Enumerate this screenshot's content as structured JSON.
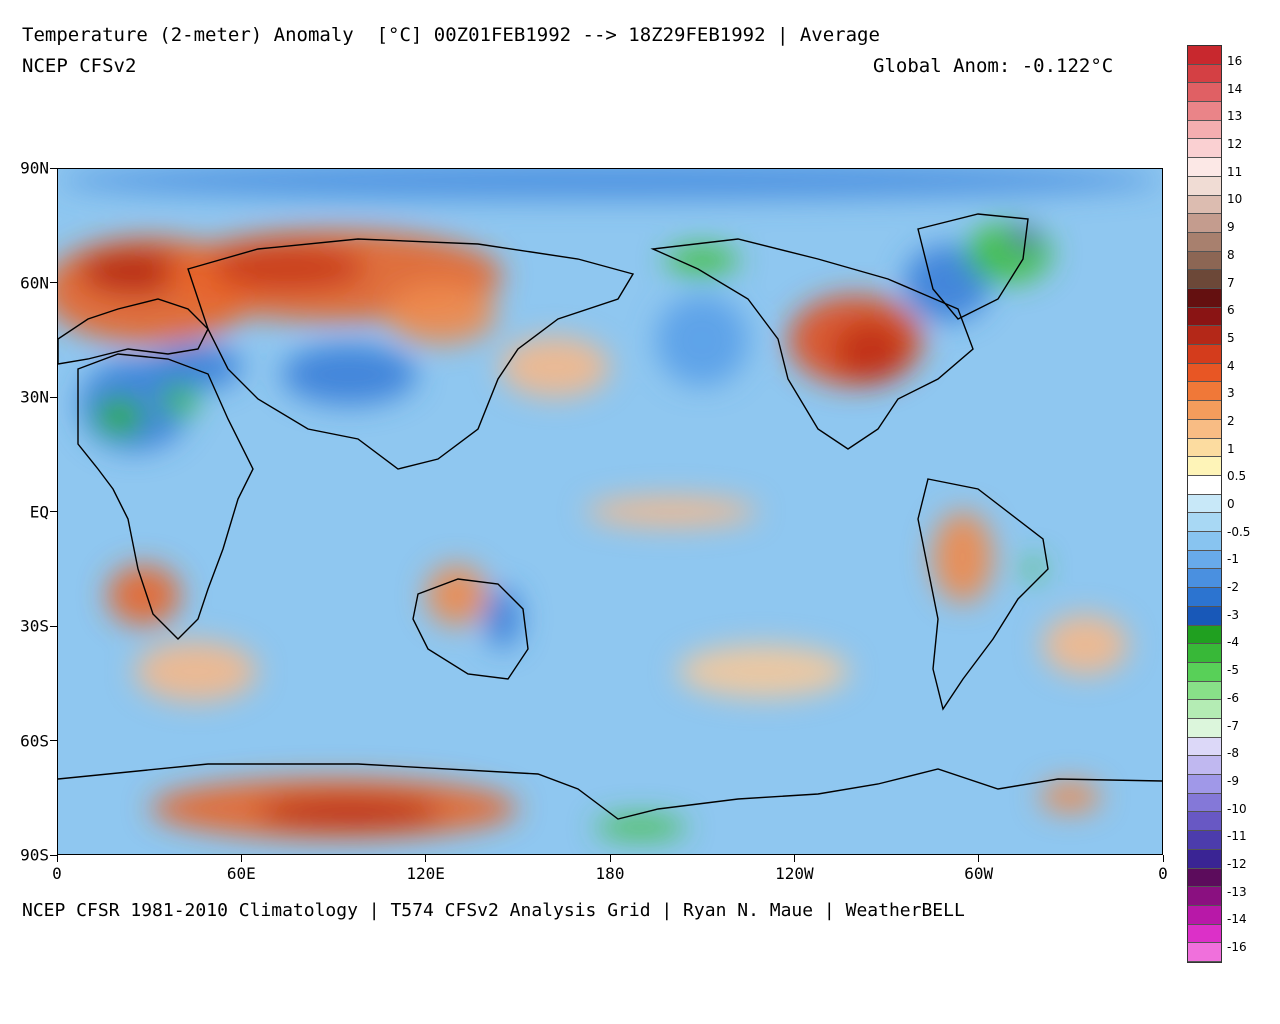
{
  "header": {
    "title_line1": "Temperature (2-meter) Anomaly  [°C] 00Z01FEB1992 --> 18Z29FEB1992 | Average",
    "title_line2": "NCEP CFSv2",
    "global_anom": "Global Anom: -0.122°C"
  },
  "footer": "NCEP CFSR 1981-2010 Climatology | T574 CFSv2 Analysis Grid | Ryan N. Maue | WeatherBELL",
  "map": {
    "projection": "equirectangular",
    "lat_labels": [
      {
        "text": "90N",
        "lat": 90
      },
      {
        "text": "60N",
        "lat": 60
      },
      {
        "text": "30N",
        "lat": 30
      },
      {
        "text": "EQ",
        "lat": 0
      },
      {
        "text": "30S",
        "lat": -30
      },
      {
        "text": "60S",
        "lat": -60
      },
      {
        "text": "90S",
        "lat": -90
      }
    ],
    "lon_labels": [
      {
        "text": "0",
        "lon": 0
      },
      {
        "text": "60E",
        "lon": 60
      },
      {
        "text": "120E",
        "lon": 120
      },
      {
        "text": "180",
        "lon": 180
      },
      {
        "text": "120W",
        "lon": 240
      },
      {
        "text": "60W",
        "lon": 300
      },
      {
        "text": "0",
        "lon": 360
      }
    ],
    "background_color": "#8fc7f0",
    "anomaly_regions": [
      {
        "name": "arctic-cold-band",
        "lon": 180,
        "lat": 87,
        "rx": 180,
        "ry": 5,
        "color": "#4a90e0"
      },
      {
        "name": "europe-warm",
        "lon": 30,
        "lat": 58,
        "rx": 35,
        "ry": 14,
        "color": "#e8652a"
      },
      {
        "name": "scandinavia-hot",
        "lon": 25,
        "lat": 63,
        "rx": 18,
        "ry": 6,
        "color": "#b62818"
      },
      {
        "name": "siberia-warm",
        "lon": 90,
        "lat": 62,
        "rx": 55,
        "ry": 12,
        "color": "#e8652a"
      },
      {
        "name": "siberia-hot",
        "lon": 75,
        "lat": 64,
        "rx": 25,
        "ry": 6,
        "color": "#c8381c"
      },
      {
        "name": "east-asia-warm",
        "lon": 125,
        "lat": 52,
        "rx": 18,
        "ry": 8,
        "color": "#f08a4a"
      },
      {
        "name": "north-pacific-warm",
        "lon": 162,
        "lat": 38,
        "rx": 18,
        "ry": 8,
        "color": "#f5b88a"
      },
      {
        "name": "north-africa-cold",
        "lon": 25,
        "lat": 28,
        "rx": 18,
        "ry": 12,
        "color": "#3a7fd8"
      },
      {
        "name": "sahara-green",
        "lon": 20,
        "lat": 25,
        "rx": 8,
        "ry": 5,
        "color": "#30b030"
      },
      {
        "name": "arabia-green",
        "lon": 40,
        "lat": 30,
        "rx": 6,
        "ry": 5,
        "color": "#40c040"
      },
      {
        "name": "middle-east-cold",
        "lon": 45,
        "lat": 38,
        "rx": 15,
        "ry": 6,
        "color": "#3a7fd8"
      },
      {
        "name": "tibet-cold",
        "lon": 95,
        "lat": 36,
        "rx": 22,
        "ry": 8,
        "color": "#3a7fd8"
      },
      {
        "name": "southern-africa-warm",
        "lon": 28,
        "lat": -22,
        "rx": 12,
        "ry": 8,
        "color": "#e8652a"
      },
      {
        "name": "south-indian-warm",
        "lon": 45,
        "lat": -42,
        "rx": 20,
        "ry": 8,
        "color": "#f5b88a"
      },
      {
        "name": "australia-warm",
        "lon": 130,
        "lat": -22,
        "rx": 10,
        "ry": 8,
        "color": "#f08a4a"
      },
      {
        "name": "australia-cold",
        "lon": 145,
        "lat": -28,
        "rx": 6,
        "ry": 8,
        "color": "#3a7fd8"
      },
      {
        "name": "nino-warm",
        "lon": 200,
        "lat": 0,
        "rx": 28,
        "ry": 4,
        "color": "#f5b88a"
      },
      {
        "name": "south-pacific-warm",
        "lon": 230,
        "lat": -42,
        "rx": 28,
        "ry": 7,
        "color": "#f5c89a"
      },
      {
        "name": "gulf-alaska-cold",
        "lon": 210,
        "lat": 45,
        "rx": 15,
        "ry": 12,
        "color": "#5aa0e8"
      },
      {
        "name": "north-america-warm",
        "lon": 260,
        "lat": 45,
        "rx": 22,
        "ry": 12,
        "color": "#e05020"
      },
      {
        "name": "north-america-hot",
        "lon": 265,
        "lat": 42,
        "rx": 12,
        "ry": 8,
        "color": "#c03018"
      },
      {
        "name": "alaska-green",
        "lon": 210,
        "lat": 66,
        "rx": 12,
        "ry": 4,
        "color": "#40c040"
      },
      {
        "name": "canada-cold",
        "lon": 290,
        "lat": 60,
        "rx": 14,
        "ry": 10,
        "color": "#3a7fd8"
      },
      {
        "name": "greenland-green",
        "lon": 310,
        "lat": 68,
        "rx": 14,
        "ry": 8,
        "color": "#40c040"
      },
      {
        "name": "greenland-purple",
        "lon": 315,
        "lat": 72,
        "rx": 4,
        "ry": 3,
        "color": "#6040c0"
      },
      {
        "name": "south-america-warm",
        "lon": 295,
        "lat": -12,
        "rx": 10,
        "ry": 12,
        "color": "#f08a4a"
      },
      {
        "name": "brazil-green",
        "lon": 318,
        "lat": -15,
        "rx": 3,
        "ry": 3,
        "color": "#40c040"
      },
      {
        "name": "south-atlantic-warm",
        "lon": 335,
        "lat": -35,
        "rx": 14,
        "ry": 8,
        "color": "#f5b88a"
      },
      {
        "name": "east-antarctica-warm",
        "lon": 90,
        "lat": -78,
        "rx": 60,
        "ry": 8,
        "color": "#e8652a"
      },
      {
        "name": "east-antarctica-hot",
        "lon": 95,
        "lat": -79,
        "rx": 30,
        "ry": 4,
        "color": "#b62818"
      },
      {
        "name": "ross-green",
        "lon": 190,
        "lat": -83,
        "rx": 15,
        "ry": 3,
        "color": "#40c040"
      },
      {
        "name": "weddell-warm",
        "lon": 330,
        "lat": -75,
        "rx": 10,
        "ry": 4,
        "color": "#f08a4a"
      }
    ]
  },
  "colorbar": {
    "labels": [
      "16",
      "14",
      "13",
      "12",
      "11",
      "10",
      "9",
      "8",
      "7",
      "6",
      "5",
      "4",
      "3",
      "2",
      "1",
      "0.5",
      "0",
      "-0.5",
      "-1",
      "-2",
      "-3",
      "-4",
      "-5",
      "-6",
      "-7",
      "-8",
      "-9",
      "-10",
      "-11",
      "-12",
      "-13",
      "-14",
      "-16"
    ],
    "colors": [
      "#c8282e",
      "#d44044",
      "#e06064",
      "#ea8488",
      "#f4aeb0",
      "#fad0d2",
      "#fce8e6",
      "#f0dcd4",
      "#dcbcb0",
      "#c49c8e",
      "#a8806e",
      "#8c6654",
      "#6c4838",
      "#641010",
      "#8a1414",
      "#b42818",
      "#d43c1c",
      "#e85624",
      "#f07838",
      "#f49c5c",
      "#f8bc84",
      "#fcdca0",
      "#fef4b8",
      "#ffffff",
      "#c8e8f8",
      "#a8d8f4",
      "#88c4f0",
      "#68aaea",
      "#4a90e0",
      "#2c74d0",
      "#1858b8",
      "#20a020",
      "#38b838",
      "#58d058",
      "#88e088",
      "#b4ecb4",
      "#dcf6dc",
      "#dcd8f8",
      "#c0b8f0",
      "#a098e8",
      "#8478d8",
      "#6858c4",
      "#4c3cac",
      "#3a2494",
      "#5c0c5c",
      "#8a1080",
      "#b818a8",
      "#dc30c8",
      "#f070dc"
    ],
    "n_cells": 49
  }
}
